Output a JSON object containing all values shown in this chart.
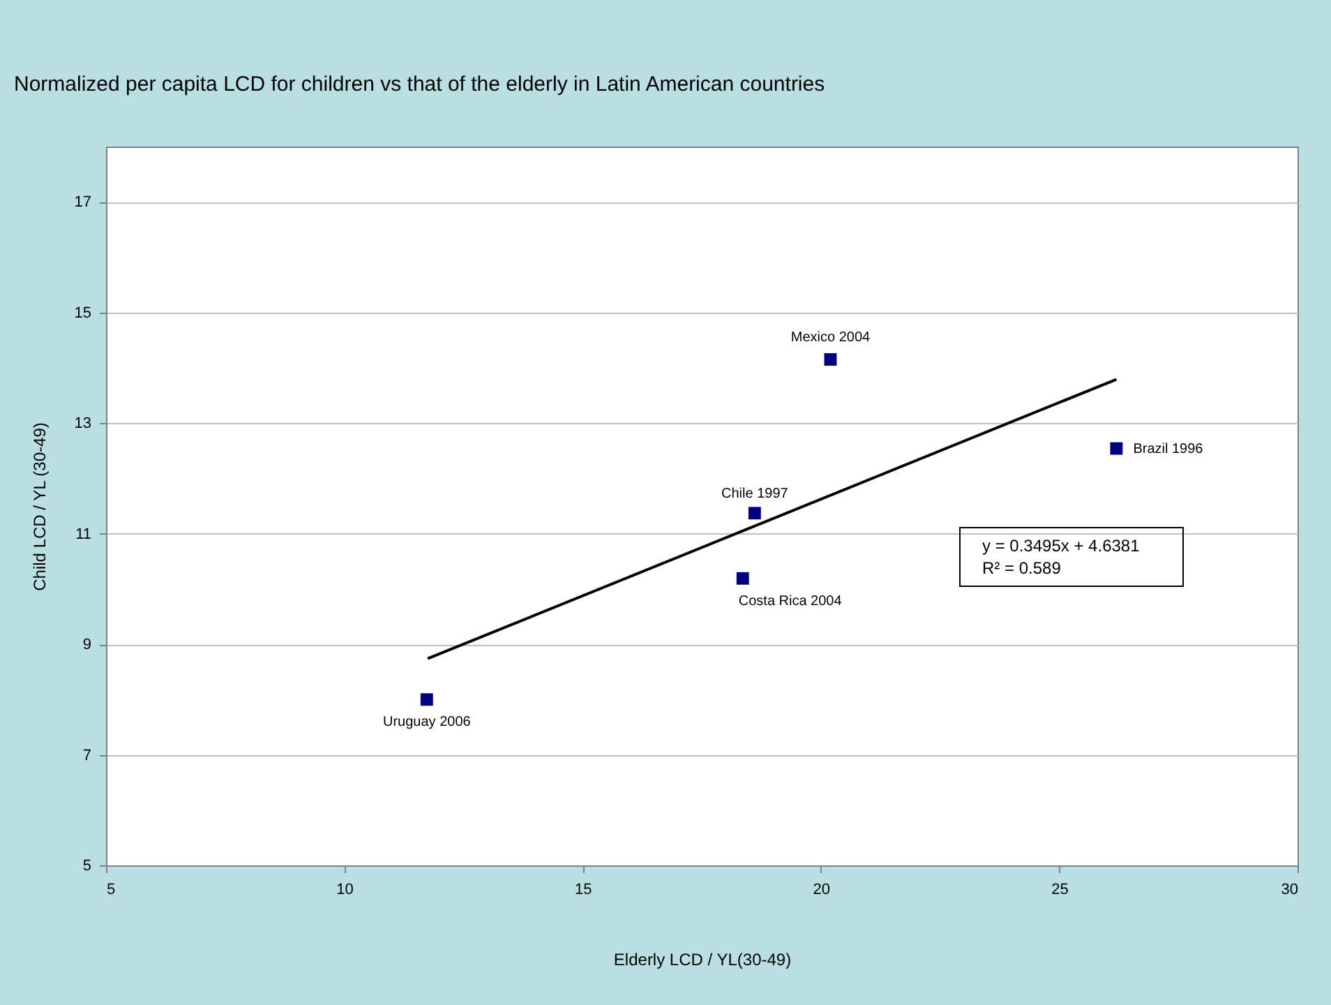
{
  "chart_data": {
    "type": "scatter",
    "title": "Normalized per capita LCD for children vs that of the elderly in Latin American countries",
    "xlabel": "Elderly LCD / YL(30-49)",
    "ylabel": "Child LCD / YL (30-49)",
    "xlim": [
      5,
      30
    ],
    "xticks": [
      5,
      10,
      15,
      20,
      25,
      30
    ],
    "ylim": [
      5,
      18
    ],
    "yticks": [
      5,
      7,
      9,
      11,
      13,
      15,
      17
    ],
    "grid": "y",
    "marker": "square",
    "series": [
      {
        "color": "#000080",
        "x": [
          11.73,
          18.36,
          18.61,
          20.2,
          26.2
        ],
        "values": [
          8.0,
          10.19,
          11.37,
          14.15,
          12.54
        ]
      },
      {
        "type": "line",
        "marker": "none",
        "color": "#000000",
        "line_style": "solid",
        "x": [
          11.75,
          26.2
        ],
        "values": [
          8.74,
          13.79
        ]
      }
    ],
    "annotations": [
      {
        "text": "Uruguay 2006",
        "x": 11.73,
        "y": 8.0
      },
      {
        "text": "Costa Rica 2004",
        "x": 18.36,
        "y": 10.19
      },
      {
        "text": "Chile 1997",
        "x": 18.61,
        "y": 11.37
      },
      {
        "text": "Mexico 2004",
        "x": 20.2,
        "y": 14.15
      },
      {
        "text": "Brazil 1996",
        "x": 26.2,
        "y": 12.54
      },
      "y = 0.3495x + 4.6381",
      "R² = 0.589"
    ]
  }
}
